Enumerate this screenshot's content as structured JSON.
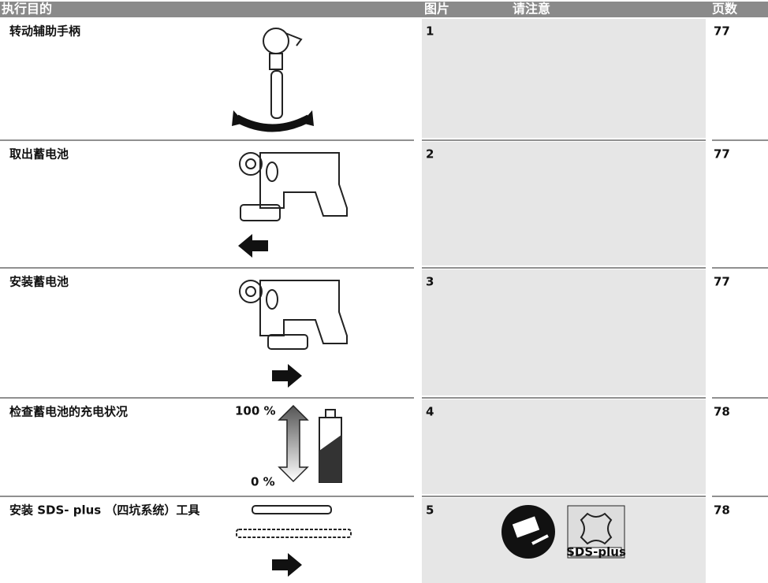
{
  "header": {
    "columns": [
      "执行目的",
      "图片",
      "请注意",
      "页数"
    ]
  },
  "rows": [
    {
      "purpose": "转动辅助手柄",
      "figure": 1,
      "page": 77
    },
    {
      "purpose": "取出蓄电池",
      "figure": 2,
      "page": 77
    },
    {
      "purpose": "安装蓄电池",
      "figure": 3,
      "page": 77
    },
    {
      "purpose": "检查蓄电池的充电状况",
      "figure": 4,
      "page": 78
    },
    {
      "purpose": "安装 SDS- plus （四坑系统）工具",
      "figure": 5,
      "page": 78
    }
  ],
  "figure_labels": {
    "charge_full": "100 %",
    "charge_empty": "0 %",
    "sds_plus": "SDS-plus"
  }
}
